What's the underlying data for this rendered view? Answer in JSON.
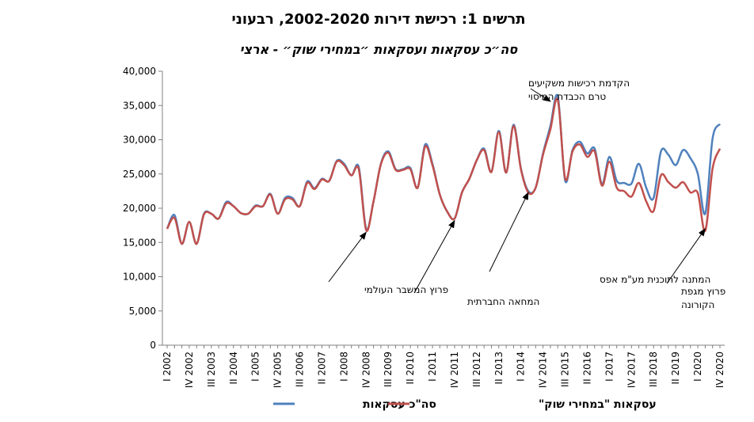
{
  "chart_data": {
    "type": "line",
    "title": "תרשים 1: רכישת דירות 2002-2020, רבעוני",
    "subtitle": "סה״כ עסקאות ועסקאות ״במחירי שוק״ - ארצי",
    "xlabel": "",
    "ylabel": "",
    "ylim": [
      0,
      40000
    ],
    "y_ticks": [
      "0",
      "5,000",
      "10,000",
      "15,000",
      "20,000",
      "25,000",
      "30,000",
      "35,000",
      "40,000"
    ],
    "y_tick_values": [
      0,
      5000,
      10000,
      15000,
      20000,
      25000,
      30000,
      35000,
      40000
    ],
    "x_tick_labels": [
      "I 2002",
      "IV 2002",
      "III 2003",
      "II 2004",
      "I 2005",
      "IV 2005",
      "III 2006",
      "II 2007",
      "I 2008",
      "IV 2008",
      "III 2009",
      "II 2010",
      "I 2011",
      "IV 2011",
      "III 2012",
      "II 2013",
      "I 2014",
      "IV 2014",
      "III 2015",
      "II 2016",
      "I 2017",
      "IV 2017",
      "III 2018",
      "II 2019",
      "I 2020",
      "IV 2020"
    ],
    "grid": false,
    "legend_position": "bottom",
    "series": [
      {
        "name": "סה\"כ עסקאות",
        "color": "#4f81bd",
        "values": [
          17000,
          19000,
          14800,
          18000,
          14800,
          19200,
          19200,
          18500,
          20900,
          20300,
          19300,
          19200,
          20400,
          20300,
          22100,
          19200,
          21500,
          21500,
          20300,
          23900,
          22900,
          24300,
          24000,
          26900,
          26500,
          24800,
          26000,
          17000,
          21000,
          26500,
          28300,
          25700,
          25700,
          25900,
          23000,
          29300,
          26500,
          22000,
          19500,
          18500,
          22300,
          24300,
          27000,
          28700,
          25300,
          31300,
          25200,
          32200,
          25800,
          22500,
          23000,
          28000,
          32000,
          36300,
          24000,
          28500,
          29700,
          28000,
          28700,
          23500,
          27500,
          24000,
          23700,
          23600,
          26500,
          23000,
          21500,
          28300,
          27800,
          26300,
          28500,
          27300,
          25000,
          19200,
          30200,
          32300
        ]
      },
      {
        "name": "עסקאות \"במחירי שוק\"",
        "color": "#c0504d",
        "values": [
          17000,
          18600,
          14800,
          18000,
          14800,
          19100,
          19200,
          18500,
          20700,
          20300,
          19300,
          19200,
          20300,
          20300,
          22000,
          19200,
          21300,
          21300,
          20300,
          23700,
          22800,
          24200,
          24000,
          26800,
          26300,
          24800,
          25700,
          16800,
          21000,
          26400,
          28100,
          25600,
          25600,
          25700,
          23000,
          29000,
          26300,
          22000,
          19500,
          18500,
          22300,
          24300,
          27000,
          28500,
          25300,
          31100,
          25200,
          32000,
          25700,
          22300,
          23000,
          27800,
          31500,
          35800,
          24300,
          28300,
          29300,
          27500,
          28300,
          23300,
          26800,
          23000,
          22500,
          21700,
          23700,
          21000,
          19600,
          24800,
          23800,
          23000,
          23800,
          22300,
          22200,
          16700,
          25800,
          28700
        ]
      }
    ],
    "annotations": [
      {
        "text_lines": [
          "פרוץ המשבר העולמי"
        ],
        "points_to_index": 27,
        "points_to_value": 16500
      },
      {
        "text_lines": [
          "המחאה החברתית"
        ],
        "points_to_index": 39,
        "points_to_value": 18200
      },
      {
        "text_lines": [
          "המתנה לתוכנית מע\"מ אפס"
        ],
        "points_to_index": 49,
        "points_to_value": 22300
      },
      {
        "text_lines": [
          "פרוץ מגפת",
          "הקורונה"
        ],
        "points_to_index": 73,
        "points_to_value": 17000
      },
      {
        "text_lines": [
          "הקדמת רכישות משקיעים",
          "טרם הכבדת המיסוי"
        ],
        "points_to_index": 52,
        "points_to_value": 35600
      }
    ]
  }
}
